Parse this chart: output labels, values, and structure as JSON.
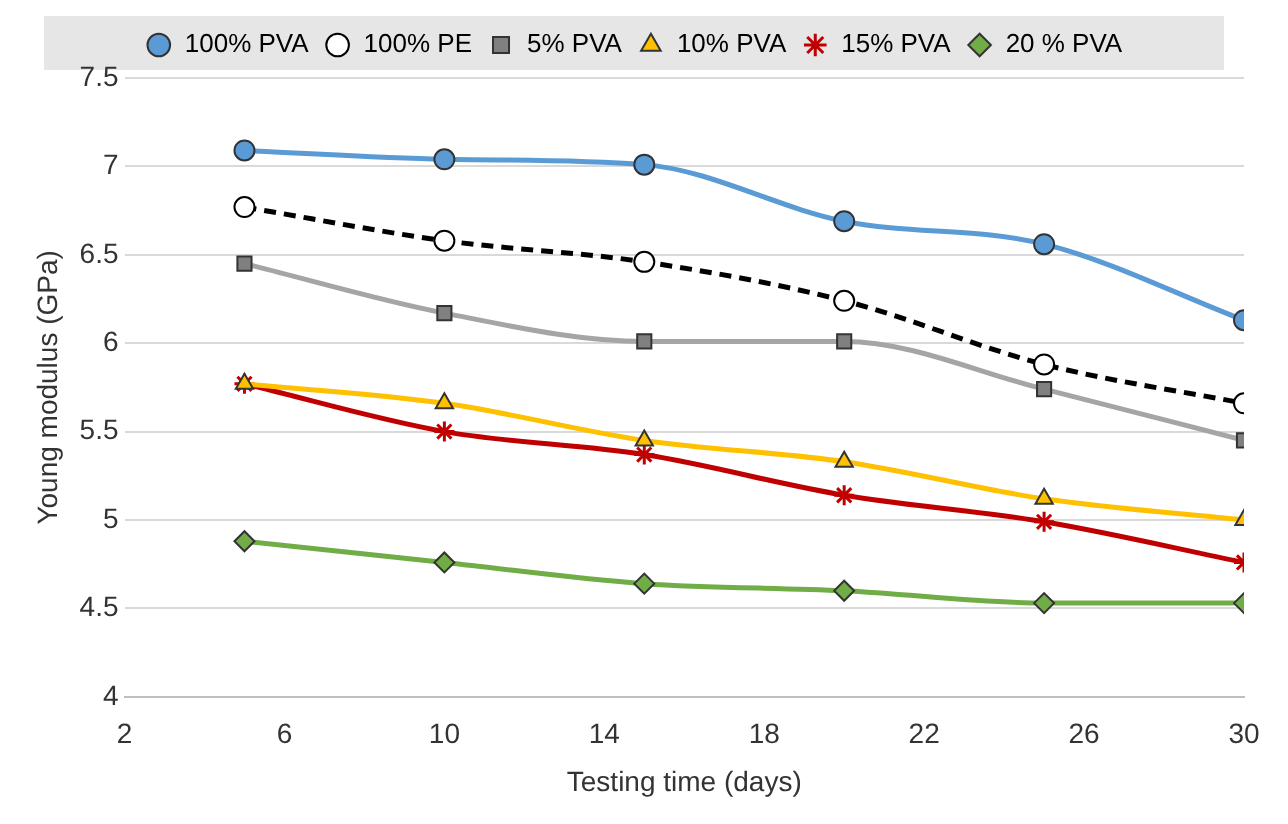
{
  "chart_data": {
    "type": "line",
    "xlabel": "Testing time (days)",
    "ylabel": "Young modulus (GPa)",
    "x": [
      5,
      10,
      15,
      20,
      25,
      30
    ],
    "xlim": [
      2,
      30
    ],
    "xticks": [
      2,
      6,
      10,
      14,
      18,
      22,
      26,
      30
    ],
    "ylim": [
      4,
      7.5
    ],
    "yticks": [
      4,
      4.5,
      5,
      5.5,
      6,
      6.5,
      7,
      7.5
    ],
    "grid": "y",
    "legend": "top",
    "series": [
      {
        "name": "100% PVA",
        "color": "#5b9bd5",
        "marker": "circle",
        "line_style": "solid",
        "values": [
          7.09,
          7.04,
          7.01,
          6.69,
          6.56,
          6.13
        ]
      },
      {
        "name": "100% PE",
        "color": "#000000",
        "marker": "circle",
        "line_style": "dashed",
        "values": [
          6.77,
          6.58,
          6.46,
          6.24,
          5.88,
          5.66
        ]
      },
      {
        "name": "5% PVA",
        "color": "#a5a5a5",
        "marker": "square",
        "line_style": "solid",
        "values": [
          6.45,
          6.17,
          6.01,
          6.01,
          5.74,
          5.45
        ]
      },
      {
        "name": "10% PVA",
        "color": "#ffc000",
        "marker": "triangle",
        "line_style": "solid",
        "values": [
          5.77,
          5.66,
          5.45,
          5.33,
          5.12,
          5.0
        ]
      },
      {
        "name": "15% PVA",
        "color": "#c00000",
        "marker": "cross",
        "line_style": "solid",
        "values": [
          5.77,
          5.5,
          5.37,
          5.14,
          4.99,
          4.76
        ]
      },
      {
        "name": "20 % PVA",
        "color": "#70ad47",
        "marker": "diamond",
        "line_style": "solid",
        "values": [
          4.88,
          4.76,
          4.64,
          4.6,
          4.53,
          4.53
        ]
      }
    ]
  }
}
